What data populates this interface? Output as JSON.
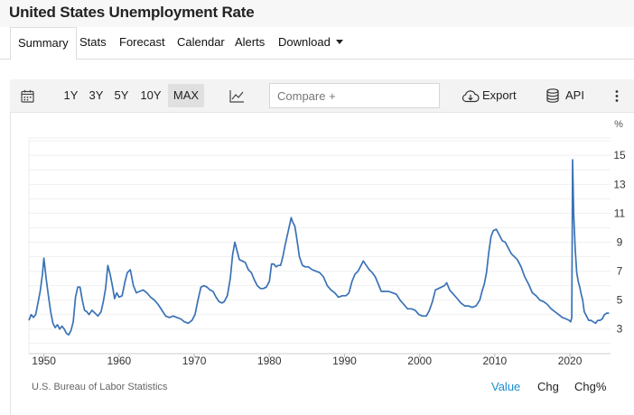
{
  "page": {
    "title": "United States Unemployment Rate"
  },
  "tabs": [
    {
      "label": "Summary",
      "active": true
    },
    {
      "label": "Stats"
    },
    {
      "label": "Forecast"
    },
    {
      "label": "Calendar"
    },
    {
      "label": "Alerts"
    },
    {
      "label": "Download",
      "has_caret": true
    }
  ],
  "toolbar": {
    "ranges": [
      "1Y",
      "3Y",
      "5Y",
      "10Y",
      "MAX"
    ],
    "active_range": "MAX",
    "compare_placeholder": "Compare +",
    "export_label": "Export",
    "api_label": "API",
    "icons": [
      "calendar-icon",
      "line-chart-icon",
      "cloud-download-icon",
      "database-icon",
      "more-vertical-icon"
    ]
  },
  "footer": {
    "source": "U.S. Bureau of Labor Statistics",
    "modes": [
      "Value",
      "Chg",
      "Chg%"
    ],
    "active_mode": "Value",
    "active_color": "#1b8cd0"
  },
  "chart_data": {
    "type": "line",
    "unit": "%",
    "line_color": "#3a72b6",
    "xlim": [
      1948,
      2025.4
    ],
    "ylim": [
      1.3,
      16.2
    ],
    "x_ticks": [
      1950,
      1960,
      1970,
      1980,
      1990,
      2000,
      2010,
      2020
    ],
    "y_ticks": [
      3,
      5,
      7,
      9,
      11,
      13,
      15
    ],
    "grid": "horizontal",
    "y_axis_position": "right",
    "series": [
      {
        "x": [
          1948,
          1948.3,
          1948.6,
          1948.9,
          1949.2,
          1949.5,
          1949.8,
          1950.0,
          1950.3,
          1950.6,
          1950.9,
          1951.2,
          1951.5,
          1951.8,
          1952.1,
          1952.4,
          1952.7,
          1953.0,
          1953.3,
          1953.6,
          1953.9,
          1954.2,
          1954.5,
          1954.8,
          1955.1,
          1955.4,
          1955.7,
          1956.0,
          1956.4,
          1956.8,
          1957.2,
          1957.6,
          1957.9,
          1958.2,
          1958.5,
          1958.8,
          1959.1,
          1959.4,
          1959.7,
          1960.0,
          1960.4,
          1960.8,
          1961.1,
          1961.5,
          1961.9,
          1962.3,
          1962.7,
          1963.2,
          1963.7,
          1964.2,
          1964.7,
          1965.2,
          1965.7,
          1966.2,
          1966.7,
          1967.2,
          1967.7,
          1968.2,
          1968.7,
          1969.2,
          1969.7,
          1970.1,
          1970.5,
          1970.9,
          1971.3,
          1971.7,
          1972.1,
          1972.5,
          1972.9,
          1973.3,
          1973.7,
          1974.0,
          1974.4,
          1974.8,
          1975.1,
          1975.4,
          1975.7,
          1976.0,
          1976.4,
          1976.8,
          1977.2,
          1977.6,
          1978.0,
          1978.4,
          1978.8,
          1979.2,
          1979.6,
          1980.0,
          1980.3,
          1980.6,
          1980.9,
          1981.2,
          1981.5,
          1981.8,
          1982.1,
          1982.4,
          1982.7,
          1982.9,
          1983.1,
          1983.4,
          1983.7,
          1984.0,
          1984.4,
          1984.8,
          1985.2,
          1985.7,
          1986.2,
          1986.7,
          1987.2,
          1987.7,
          1988.2,
          1988.7,
          1989.2,
          1989.7,
          1990.2,
          1990.6,
          1991.0,
          1991.4,
          1991.8,
          1992.2,
          1992.5,
          1992.9,
          1993.3,
          1993.7,
          1994.1,
          1994.5,
          1994.9,
          1995.4,
          1995.9,
          1996.4,
          1996.9,
          1997.4,
          1997.9,
          1998.4,
          1998.9,
          1999.4,
          1999.9,
          2000.4,
          2000.9,
          2001.3,
          2001.7,
          2002.1,
          2002.5,
          2002.9,
          2003.3,
          2003.6,
          2004.0,
          2004.5,
          2005.0,
          2005.5,
          2006.0,
          2006.5,
          2007.0,
          2007.5,
          2008.0,
          2008.3,
          2008.6,
          2008.9,
          2009.2,
          2009.5,
          2009.8,
          2010.2,
          2010.6,
          2011.0,
          2011.4,
          2011.8,
          2012.2,
          2012.6,
          2013.0,
          2013.5,
          2014.0,
          2014.5,
          2015.0,
          2015.5,
          2016.0,
          2016.5,
          2017.0,
          2017.5,
          2018.0,
          2018.5,
          2019.0,
          2019.5,
          2019.9,
          2020.1,
          2020.25,
          2020.35,
          2020.5,
          2020.7,
          2020.9,
          2021.1,
          2021.3,
          2021.5,
          2021.7,
          2021.9,
          2022.2,
          2022.5,
          2022.8,
          2023.1,
          2023.4,
          2023.7,
          2024.0,
          2024.3,
          2024.6,
          2024.9,
          2025.2
        ],
        "values": [
          3.6,
          4.0,
          3.8,
          4.0,
          4.8,
          5.6,
          6.8,
          7.9,
          6.5,
          5.3,
          4.2,
          3.4,
          3.1,
          3.3,
          3.0,
          3.2,
          3.0,
          2.7,
          2.6,
          2.9,
          3.5,
          5.2,
          5.9,
          5.9,
          5.0,
          4.3,
          4.2,
          4.0,
          4.3,
          4.1,
          3.9,
          4.2,
          4.9,
          5.8,
          7.4,
          6.8,
          6.0,
          5.1,
          5.5,
          5.2,
          5.3,
          6.3,
          6.9,
          7.1,
          6.0,
          5.5,
          5.6,
          5.7,
          5.5,
          5.2,
          5.0,
          4.7,
          4.3,
          3.9,
          3.8,
          3.9,
          3.8,
          3.7,
          3.5,
          3.4,
          3.6,
          4.0,
          5.0,
          5.9,
          6.0,
          5.9,
          5.7,
          5.6,
          5.2,
          4.9,
          4.8,
          4.9,
          5.3,
          6.5,
          8.1,
          9.0,
          8.4,
          7.8,
          7.7,
          7.6,
          7.1,
          6.9,
          6.4,
          6.0,
          5.8,
          5.8,
          5.9,
          6.3,
          7.5,
          7.5,
          7.3,
          7.4,
          7.4,
          8.0,
          8.8,
          9.5,
          10.2,
          10.7,
          10.4,
          10.1,
          9.1,
          8.0,
          7.4,
          7.3,
          7.3,
          7.1,
          7.0,
          6.9,
          6.6,
          6.0,
          5.7,
          5.5,
          5.2,
          5.3,
          5.3,
          5.5,
          6.3,
          6.8,
          7.0,
          7.4,
          7.7,
          7.4,
          7.1,
          6.9,
          6.6,
          6.1,
          5.6,
          5.6,
          5.6,
          5.5,
          5.4,
          5.0,
          4.7,
          4.4,
          4.4,
          4.3,
          4.0,
          3.9,
          3.9,
          4.3,
          4.9,
          5.7,
          5.8,
          5.9,
          6.0,
          6.2,
          5.7,
          5.4,
          5.1,
          4.8,
          4.6,
          4.6,
          4.5,
          4.6,
          5.0,
          5.6,
          6.1,
          6.9,
          8.3,
          9.4,
          9.8,
          9.9,
          9.5,
          9.1,
          9.0,
          8.6,
          8.2,
          8.0,
          7.8,
          7.3,
          6.6,
          6.1,
          5.5,
          5.3,
          5.0,
          4.9,
          4.7,
          4.4,
          4.2,
          4.0,
          3.8,
          3.7,
          3.6,
          3.5,
          3.8,
          14.7,
          11.0,
          8.5,
          6.9,
          6.3,
          5.9,
          5.4,
          5.0,
          4.2,
          3.9,
          3.6,
          3.6,
          3.5,
          3.4,
          3.6,
          3.6,
          3.7,
          4.0,
          4.1,
          4.1
        ]
      }
    ]
  }
}
